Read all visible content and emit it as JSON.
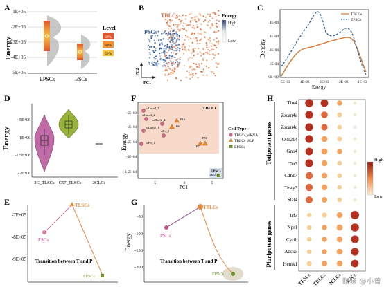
{
  "panels": {
    "A": {
      "letter": "A",
      "ylabel": "Energy",
      "yticks": [
        "-1E+05",
        "-2E+05",
        "-3E+05",
        "-4E+05",
        "-5E+05"
      ],
      "xticks": [
        "EPSCs",
        "ESCs"
      ],
      "legend_title": "Level",
      "legend": [
        "90%",
        "80%",
        "50%"
      ],
      "legend_colors": [
        "#e2552b",
        "#f29432",
        "#f6c243"
      ]
    },
    "B": {
      "letter": "B",
      "labels": {
        "tblcs": "TBLCs",
        "pscs": "PSCs",
        "pc1": "PC1",
        "pc2": "PC2"
      },
      "colorbar": {
        "title": "Energy",
        "high": "High",
        "low": "Low"
      }
    },
    "C": {
      "letter": "C",
      "ylabel": "Density",
      "xlabel": "Energy",
      "yticks": [
        "4E-04",
        "3E-04",
        "2E-04",
        "1E-04",
        "0E+00"
      ],
      "xticks": [
        "-5E+03",
        "-4E+03",
        "-3E+03",
        "-2E+03",
        "-1E+03"
      ],
      "legend": [
        "TBLCs",
        "EPSCs"
      ]
    },
    "D": {
      "letter": "D",
      "ylabel": "Energy",
      "yticks": [
        "-5E+06",
        "-1E+06",
        "-1.5E+06",
        "-2E+06"
      ],
      "xticks": [
        "2C_TLSCs",
        "C57_TLSCs",
        "2CLCs"
      ]
    },
    "F": {
      "letter": "F",
      "ylabel": "Energy",
      "xlabel": "PC1",
      "box_title": "TBLCs",
      "box2_title": "EPSCs",
      "yticks": [
        "-5E+03",
        "-1E+04",
        "-1.5E+04",
        "-2E+04",
        "-2.5E+04"
      ],
      "xticks": [
        "-5",
        "0",
        "5"
      ],
      "points": [
        "siLaca4_1",
        "siLaca4_2",
        "siDkel2_2",
        "siDkel2_1",
        "siFo_1",
        "P10",
        "P6",
        "siPo_1",
        "P55",
        "P7",
        "OG6-3"
      ],
      "legend_title": "Cell Type",
      "legend": [
        "TBLCs_siRNA",
        "TBLCs_SLP",
        "EPSCs"
      ]
    },
    "H": {
      "letter": "H",
      "totipotent_label": "Totipotent genes",
      "pluripotent_label": "Pluripotent genes",
      "genes_toti": [
        "Tbx4",
        "Zscan4a",
        "Zscan4c",
        "Olfr214",
        "Gnb4",
        "Tet3",
        "Cdh17",
        "Testy3",
        "Stat4"
      ],
      "genes_pluri": [
        "Irf3",
        "Npr1",
        "Cyrib",
        "Adck5",
        "Hemk1"
      ],
      "columns": [
        "TLSCs",
        "TBLCs",
        "2CLCs",
        "ESCs"
      ],
      "legend_high": "High",
      "legend_low": "Low"
    },
    "E": {
      "letter": "E",
      "yticks": [
        "-7E+05",
        "-8E+05",
        "-9E+05"
      ],
      "labels": {
        "tlscs": "TLSCs",
        "pscs": "PSCs",
        "epscs": "EPSCs"
      },
      "transition": "Transition between T and P"
    },
    "G": {
      "letter": "G",
      "ylabel": "Energy",
      "yticks": [
        "-50",
        "-100",
        "-150",
        "-200"
      ],
      "labels": {
        "tblcs": "TBLCs",
        "pscs": "PSCs",
        "epscs": "EPSCs"
      },
      "transition": "Transition between T and P"
    }
  },
  "watermark": "頭條 @小曾"
}
